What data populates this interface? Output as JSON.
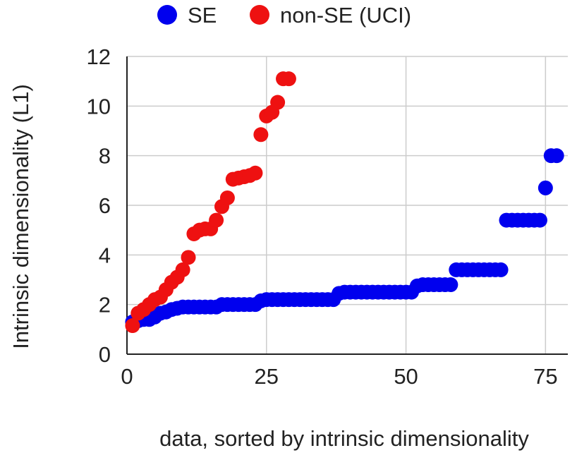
{
  "chart_data": {
    "type": "scatter",
    "title": "",
    "xlabel": "data, sorted by intrinsic dimensionality",
    "ylabel": "Intrinsic dimensionality (L1)",
    "xlim": [
      0,
      79
    ],
    "ylim": [
      0,
      12
    ],
    "xticks": [
      0,
      25,
      50,
      75
    ],
    "yticks": [
      0,
      2,
      4,
      6,
      8,
      10,
      12
    ],
    "xtick_labels": [
      "0",
      "25",
      "50",
      "75"
    ],
    "ytick_labels": [
      "0",
      "2",
      "4",
      "6",
      "8",
      "10",
      "12"
    ],
    "grid": true,
    "legend_position": "top",
    "series": [
      {
        "name": "SE",
        "color": "#0000ee",
        "x": [
          1,
          2,
          3,
          4,
          5,
          6,
          7,
          8,
          9,
          10,
          11,
          12,
          13,
          14,
          15,
          16,
          17,
          18,
          19,
          20,
          21,
          22,
          23,
          24,
          25,
          26,
          27,
          28,
          29,
          30,
          31,
          32,
          33,
          34,
          35,
          36,
          37,
          38,
          39,
          40,
          41,
          42,
          43,
          44,
          45,
          46,
          47,
          48,
          49,
          50,
          51,
          52,
          53,
          54,
          55,
          56,
          57,
          58,
          59,
          60,
          61,
          62,
          63,
          64,
          65,
          66,
          67,
          68,
          69,
          70,
          71,
          72,
          73,
          74,
          75,
          76,
          77
        ],
        "y": [
          1.3,
          1.35,
          1.4,
          1.4,
          1.5,
          1.65,
          1.7,
          1.8,
          1.85,
          1.9,
          1.9,
          1.9,
          1.9,
          1.9,
          1.9,
          1.9,
          2.0,
          2.0,
          2.0,
          2.0,
          2.0,
          2.0,
          2.0,
          2.15,
          2.2,
          2.2,
          2.2,
          2.2,
          2.2,
          2.2,
          2.2,
          2.2,
          2.2,
          2.2,
          2.2,
          2.2,
          2.2,
          2.45,
          2.5,
          2.5,
          2.5,
          2.5,
          2.5,
          2.5,
          2.5,
          2.5,
          2.5,
          2.5,
          2.5,
          2.5,
          2.5,
          2.75,
          2.8,
          2.8,
          2.8,
          2.8,
          2.8,
          2.8,
          3.4,
          3.4,
          3.4,
          3.4,
          3.4,
          3.4,
          3.4,
          3.4,
          3.4,
          5.4,
          5.4,
          5.4,
          5.4,
          5.4,
          5.4,
          5.4,
          6.7,
          8.0,
          8.0
        ]
      },
      {
        "name": "non-SE (UCI)",
        "color": "#ee1111",
        "x": [
          1,
          2,
          3,
          4,
          5,
          6,
          7,
          8,
          9,
          10,
          11,
          12,
          13,
          14,
          15,
          16,
          17,
          18,
          19,
          20,
          21,
          22,
          23,
          24,
          25,
          26,
          27,
          28,
          29
        ],
        "y": [
          1.15,
          1.65,
          1.8,
          2.0,
          2.2,
          2.3,
          2.6,
          2.9,
          3.1,
          3.4,
          3.9,
          4.85,
          5.0,
          5.05,
          5.05,
          5.4,
          5.95,
          6.3,
          7.05,
          7.1,
          7.15,
          7.2,
          7.3,
          8.85,
          9.6,
          9.75,
          10.15,
          11.1,
          11.1
        ]
      }
    ]
  }
}
